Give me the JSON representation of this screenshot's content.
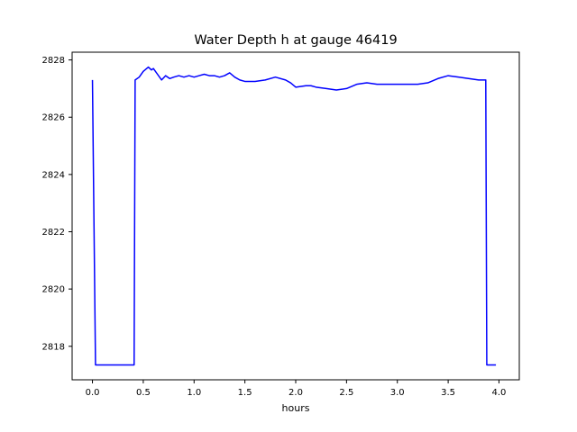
{
  "chart_data": {
    "type": "line",
    "title": "Water Depth h at gauge 46419",
    "xlabel": "hours",
    "ylabel": "",
    "xlim": [
      -0.2,
      4.2
    ],
    "ylim": [
      2816.83,
      2828.27
    ],
    "xticks": [
      0.0,
      0.5,
      1.0,
      1.5,
      2.0,
      2.5,
      3.0,
      3.5,
      4.0
    ],
    "xtick_labels": [
      "0.0",
      "0.5",
      "1.0",
      "1.5",
      "2.0",
      "2.5",
      "3.0",
      "3.5",
      "4.0"
    ],
    "yticks": [
      2818,
      2820,
      2822,
      2824,
      2826,
      2828
    ],
    "ytick_labels": [
      "2818",
      "2820",
      "2822",
      "2824",
      "2826",
      "2828"
    ],
    "grid": false,
    "legend": "none",
    "line_color": "#0000ff",
    "axes_color": "#000000",
    "series": [
      {
        "name": "water-depth-h",
        "x": [
          0.0,
          0.03,
          0.41,
          0.42,
          0.46,
          0.5,
          0.55,
          0.58,
          0.6,
          0.64,
          0.68,
          0.72,
          0.76,
          0.8,
          0.85,
          0.9,
          0.95,
          1.0,
          1.05,
          1.1,
          1.15,
          1.2,
          1.25,
          1.3,
          1.35,
          1.4,
          1.45,
          1.5,
          1.6,
          1.7,
          1.8,
          1.9,
          1.95,
          2.0,
          2.1,
          2.15,
          2.2,
          2.3,
          2.4,
          2.5,
          2.6,
          2.7,
          2.8,
          2.9,
          3.0,
          3.1,
          3.2,
          3.3,
          3.4,
          3.5,
          3.6,
          3.7,
          3.8,
          3.87,
          3.88,
          3.97
        ],
        "y": [
          2827.3,
          2817.35,
          2817.35,
          2827.3,
          2827.4,
          2827.6,
          2827.75,
          2827.65,
          2827.7,
          2827.5,
          2827.3,
          2827.45,
          2827.35,
          2827.4,
          2827.45,
          2827.4,
          2827.45,
          2827.4,
          2827.45,
          2827.5,
          2827.45,
          2827.45,
          2827.4,
          2827.45,
          2827.55,
          2827.4,
          2827.3,
          2827.25,
          2827.25,
          2827.3,
          2827.4,
          2827.3,
          2827.2,
          2827.05,
          2827.1,
          2827.1,
          2827.05,
          2827.0,
          2826.95,
          2827.0,
          2827.15,
          2827.2,
          2827.15,
          2827.15,
          2827.15,
          2827.15,
          2827.15,
          2827.2,
          2827.35,
          2827.45,
          2827.4,
          2827.35,
          2827.3,
          2827.3,
          2817.35,
          2817.35
        ]
      }
    ]
  }
}
